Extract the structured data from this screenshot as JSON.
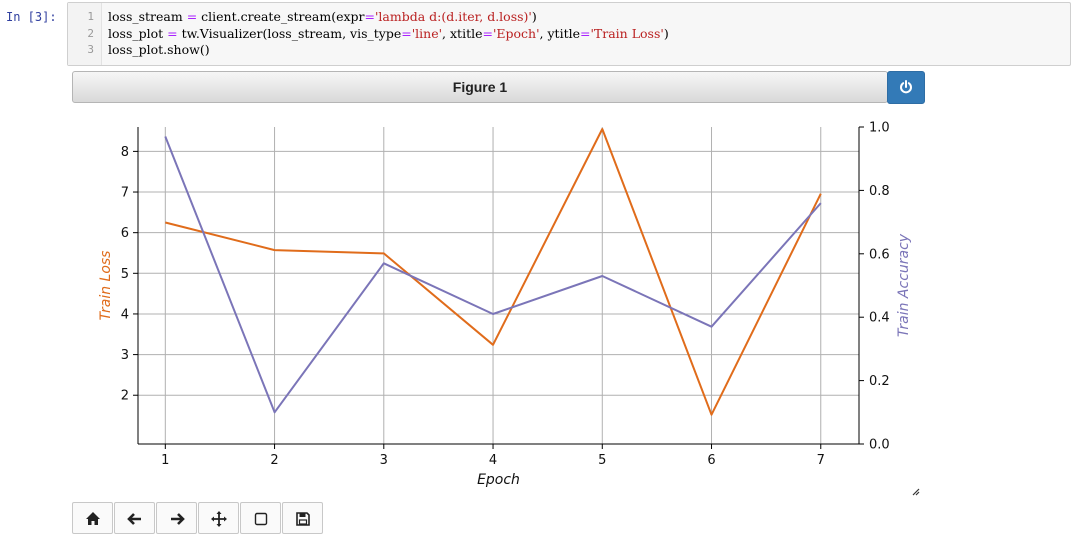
{
  "notebook": {
    "prompt": "In  [3]:",
    "code_lines": [
      {
        "n": "1",
        "parts": [
          [
            "loss_stream ",
            ""
          ],
          [
            "=",
            "o"
          ],
          [
            " client.create_stream(expr",
            ""
          ],
          [
            "=",
            "o"
          ],
          [
            "'lambda d:(d.iter, d.loss)'",
            "s"
          ],
          [
            ")",
            ""
          ]
        ]
      },
      {
        "n": "2",
        "parts": [
          [
            "loss_plot ",
            ""
          ],
          [
            "=",
            "o"
          ],
          [
            " tw.Visualizer(loss_stream, vis_type",
            ""
          ],
          [
            "=",
            "o"
          ],
          [
            "'line'",
            "s"
          ],
          [
            ", xtitle",
            ""
          ],
          [
            "=",
            "o"
          ],
          [
            "'Epoch'",
            "s"
          ],
          [
            ", ytitle",
            ""
          ],
          [
            "=",
            "o"
          ],
          [
            "'Train Loss'",
            "s"
          ],
          [
            ")",
            ""
          ]
        ]
      },
      {
        "n": "3",
        "parts": [
          [
            "loss_plot.show()",
            ""
          ]
        ]
      }
    ]
  },
  "figure": {
    "title": "Figure 1",
    "power_icon": "power-icon"
  },
  "toolbar": {
    "buttons": [
      {
        "name": "home-button",
        "icon": "home-icon"
      },
      {
        "name": "back-button",
        "icon": "arrow-left-icon"
      },
      {
        "name": "forward-button",
        "icon": "arrow-right-icon"
      },
      {
        "name": "pan-button",
        "icon": "move-icon"
      },
      {
        "name": "zoom-button",
        "icon": "square-icon"
      },
      {
        "name": "save-button",
        "icon": "floppy-disk-icon"
      }
    ]
  },
  "chart_data": {
    "type": "line",
    "title": "",
    "xlabel": "Epoch",
    "ylabel": "Train Loss",
    "ylabel_right": "Train Accuracy",
    "x": [
      1,
      2,
      3,
      4,
      5,
      6,
      7
    ],
    "xlim": [
      0.75,
      7.35
    ],
    "ylim": [
      0.8,
      8.6
    ],
    "ylim_right": [
      0.0,
      1.0
    ],
    "x_ticks": [
      "1",
      "2",
      "3",
      "4",
      "5",
      "6",
      "7"
    ],
    "y_ticks": [
      "2",
      "3",
      "4",
      "5",
      "6",
      "7",
      "8"
    ],
    "y_ticks_right": [
      "0.0",
      "0.2",
      "0.4",
      "0.6",
      "0.8",
      "1.0"
    ],
    "grid": true,
    "series": [
      {
        "axis": "left",
        "color": "#e06c1b",
        "values": [
          6.25,
          5.57,
          5.49,
          3.24,
          8.55,
          1.52,
          6.96
        ]
      },
      {
        "axis": "right",
        "color": "#7b75b8",
        "values": [
          0.97,
          0.1,
          0.57,
          0.41,
          0.53,
          0.37,
          0.76
        ]
      }
    ]
  }
}
